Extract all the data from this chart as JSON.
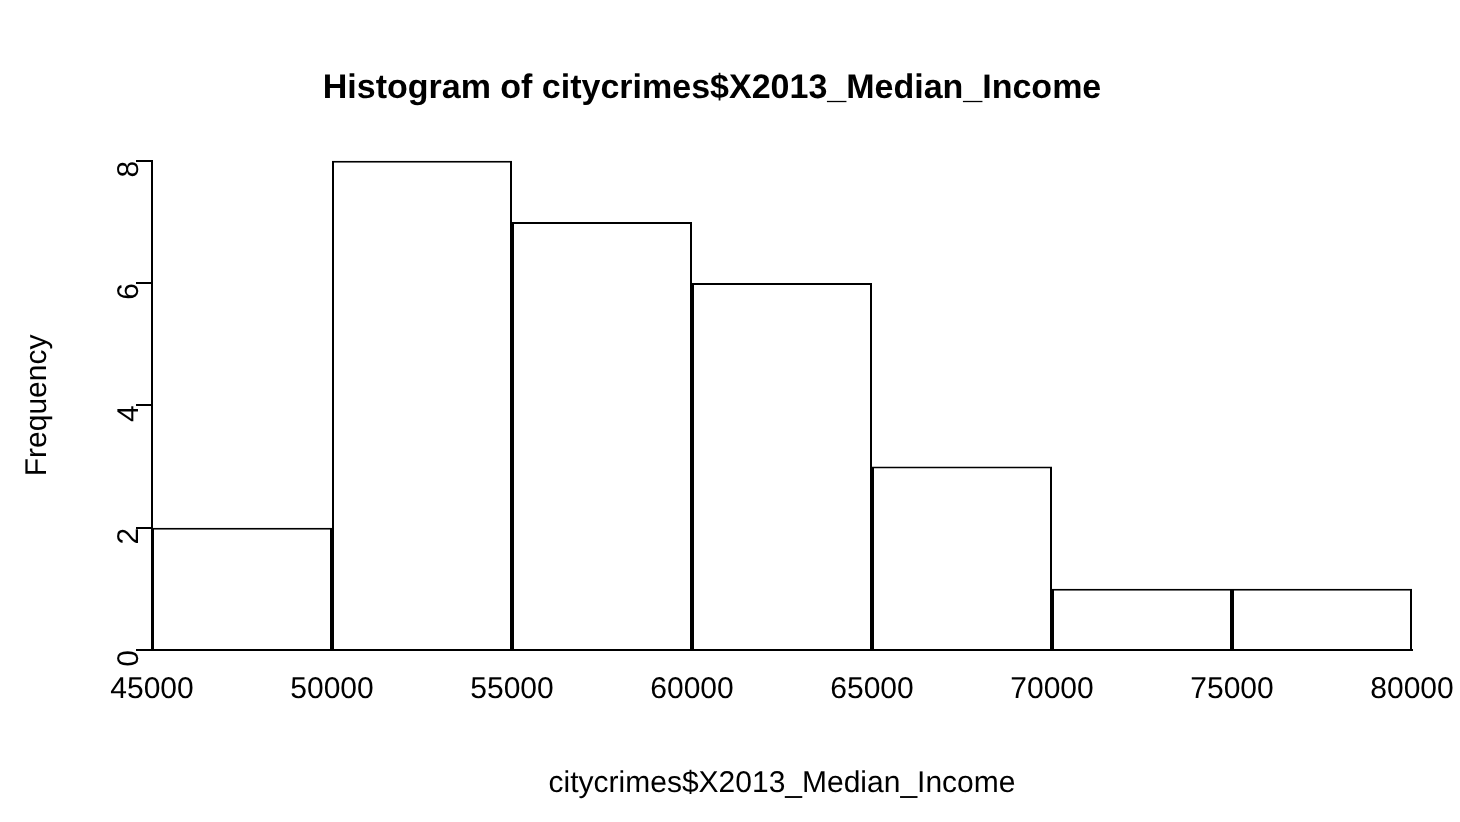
{
  "chart_data": {
    "type": "histogram",
    "title": "Histogram of citycrimes$X2013_Median_Income",
    "xlabel": "citycrimes$X2013_Median_Income",
    "ylabel": "Frequency",
    "bins": [
      45000,
      50000,
      55000,
      60000,
      65000,
      70000,
      75000,
      80000
    ],
    "values": [
      2,
      8,
      7,
      6,
      3,
      1,
      1
    ],
    "color": "#ffffff",
    "xlim": [
      45000,
      80000
    ],
    "xticks": [
      45000,
      50000,
      55000,
      60000,
      65000,
      70000,
      75000,
      80000
    ],
    "ylim": [
      0,
      8
    ],
    "yticks": [
      0,
      2,
      4,
      6,
      8
    ]
  }
}
